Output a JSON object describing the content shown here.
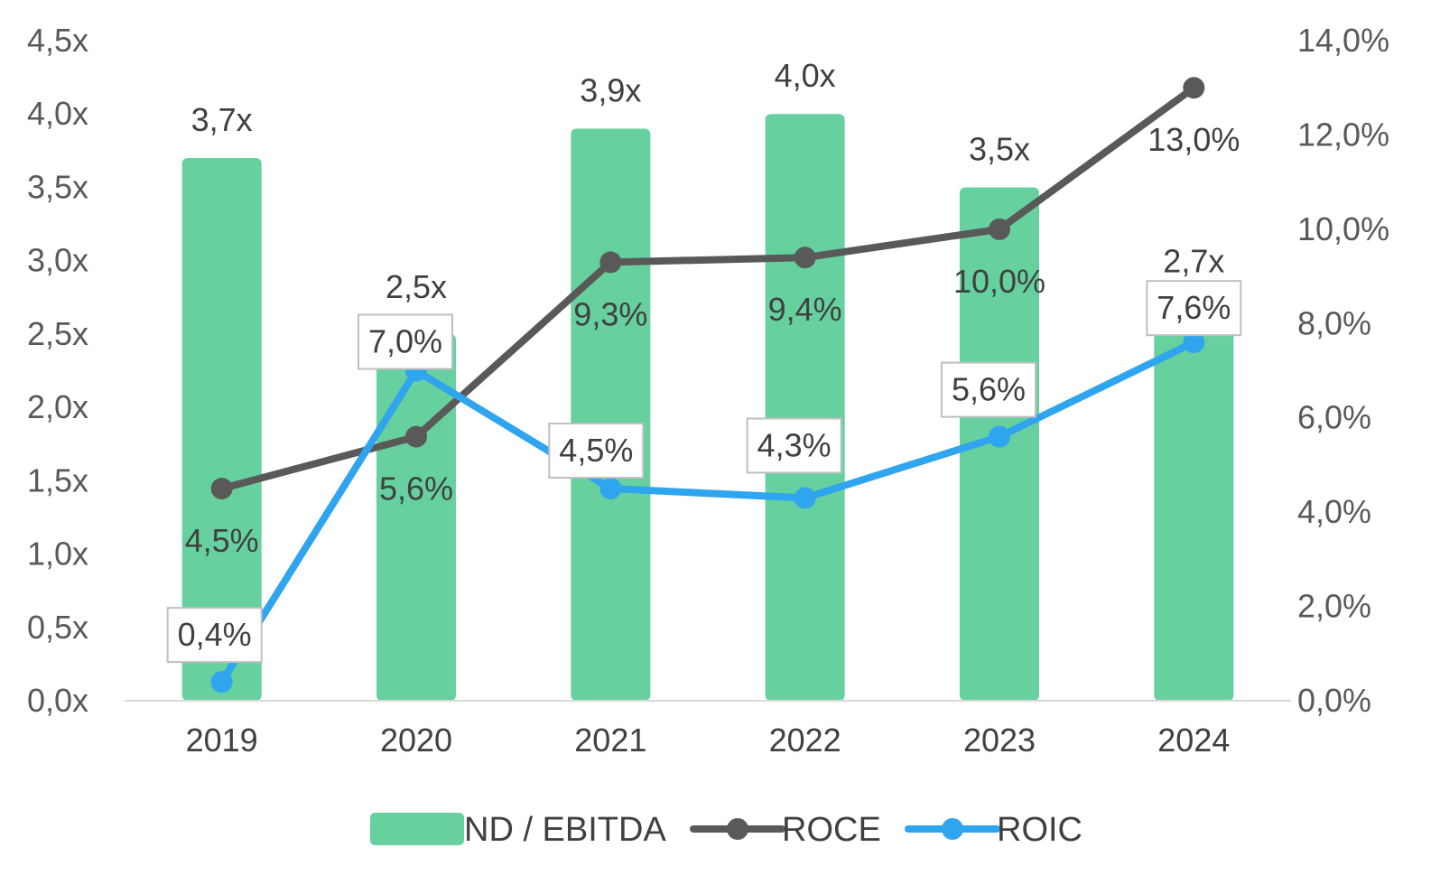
{
  "chart_data": {
    "type": "bar",
    "categories": [
      "2019",
      "2020",
      "2021",
      "2022",
      "2023",
      "2024"
    ],
    "series": [
      {
        "name": "ND / EBITDA",
        "type": "bar",
        "axis": "left",
        "values": [
          3.7,
          2.5,
          3.9,
          4.0,
          3.5,
          2.7
        ],
        "labels": [
          "3,7x",
          "2,5x",
          "3,9x",
          "4,0x",
          "3,5x",
          "2,7x"
        ],
        "color": "#66d19e"
      },
      {
        "name": "ROCE",
        "type": "line",
        "axis": "right",
        "values": [
          4.5,
          5.6,
          9.3,
          9.4,
          10.0,
          13.0
        ],
        "labels": [
          "4,5%",
          "5,6%",
          "9,3%",
          "9,4%",
          "10,0%",
          "13,0%"
        ],
        "color": "#595959"
      },
      {
        "name": "ROIC",
        "type": "line",
        "axis": "right",
        "values": [
          0.4,
          7.0,
          4.5,
          4.3,
          5.6,
          7.6
        ],
        "labels": [
          "0,4%",
          "7,0%",
          "4,5%",
          "4,3%",
          "5,6%",
          "7,6%"
        ],
        "color": "#2fa4ef",
        "boxed_labels": true
      }
    ],
    "y_left": {
      "range": [
        0,
        4.5
      ],
      "ticks": [
        0,
        0.5,
        1.0,
        1.5,
        2.0,
        2.5,
        3.0,
        3.5,
        4.0,
        4.5
      ],
      "tick_labels": [
        "0,0x",
        "0,5x",
        "1,0x",
        "1,5x",
        "2,0x",
        "2,5x",
        "3,0x",
        "3,5x",
        "4,0x",
        "4,5x"
      ]
    },
    "y_right": {
      "range": [
        0,
        14
      ],
      "ticks": [
        0,
        2,
        4,
        6,
        8,
        10,
        12,
        14
      ],
      "tick_labels": [
        "0,0%",
        "2,0%",
        "4,0%",
        "6,0%",
        "8,0%",
        "10,0%",
        "12,0%",
        "14,0%"
      ]
    },
    "grid": false,
    "legend_position": "bottom"
  }
}
